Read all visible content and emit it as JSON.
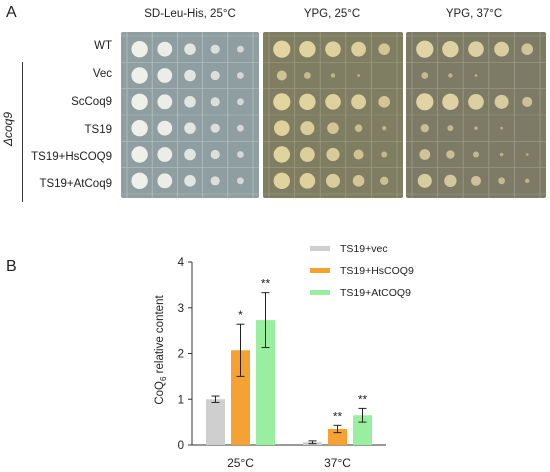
{
  "panel_a": {
    "letter": "A",
    "conditions": [
      "SD-Leu-His, 25°C",
      "YPG, 25°C",
      "YPG, 37°C"
    ],
    "strain_label": "Δcoq9",
    "rows": [
      "WT",
      "Vec",
      "ScCoq9",
      "TS19",
      "TS19+HsCOQ9",
      "TS19+AtCoq9"
    ]
  },
  "panel_b": {
    "letter": "B",
    "ylabel_main": "CoQ",
    "ylabel_sub": "6",
    "ylabel_rest": " relative content"
  },
  "chart_data": {
    "type": "bar",
    "categories": [
      "25°C",
      "37°C"
    ],
    "ylim": [
      0,
      4
    ],
    "yticks": [
      "0",
      "1",
      "2",
      "3",
      "4"
    ],
    "legend_position": "top-right",
    "series": [
      {
        "name": "TS19+vec",
        "color": "#cfcfcf",
        "values": [
          1.0,
          0.06
        ],
        "errors": [
          0.07,
          0.03
        ],
        "stars": [
          "",
          ""
        ]
      },
      {
        "name": "TS19+HsCOQ9",
        "color": "#f5a233",
        "values": [
          2.07,
          0.35
        ],
        "errors": [
          0.57,
          0.08
        ],
        "stars": [
          "*",
          "**"
        ]
      },
      {
        "name": "TS19+AtCOQ9",
        "color": "#9aeea0",
        "values": [
          2.73,
          0.65
        ],
        "errors": [
          0.6,
          0.15
        ],
        "stars": [
          "**",
          "**"
        ]
      }
    ]
  }
}
